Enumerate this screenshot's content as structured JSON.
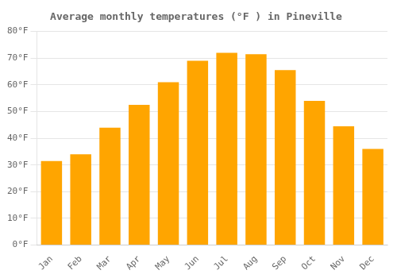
{
  "chart_data": {
    "type": "bar",
    "title": "Average monthly temperatures (°F ) in Pineville",
    "categories": [
      "Jan",
      "Feb",
      "Mar",
      "Apr",
      "May",
      "Jun",
      "Jul",
      "Aug",
      "Sep",
      "Oct",
      "Nov",
      "Dec"
    ],
    "values": [
      31.5,
      34.0,
      44.0,
      52.5,
      61.0,
      69.0,
      72.0,
      71.5,
      65.5,
      54.0,
      44.5,
      36.0
    ],
    "color": "#FFA500",
    "ylim": [
      0,
      80
    ],
    "yticks": [
      {
        "value": 0,
        "label": "0°F"
      },
      {
        "value": 10,
        "label": "10°F"
      },
      {
        "value": 20,
        "label": "20°F"
      },
      {
        "value": 30,
        "label": "30°F"
      },
      {
        "value": 40,
        "label": "40°F"
      },
      {
        "value": 50,
        "label": "50°F"
      },
      {
        "value": 60,
        "label": "60°F"
      },
      {
        "value": 70,
        "label": "70°F"
      },
      {
        "value": 80,
        "label": "80°F"
      }
    ],
    "grid": true
  }
}
